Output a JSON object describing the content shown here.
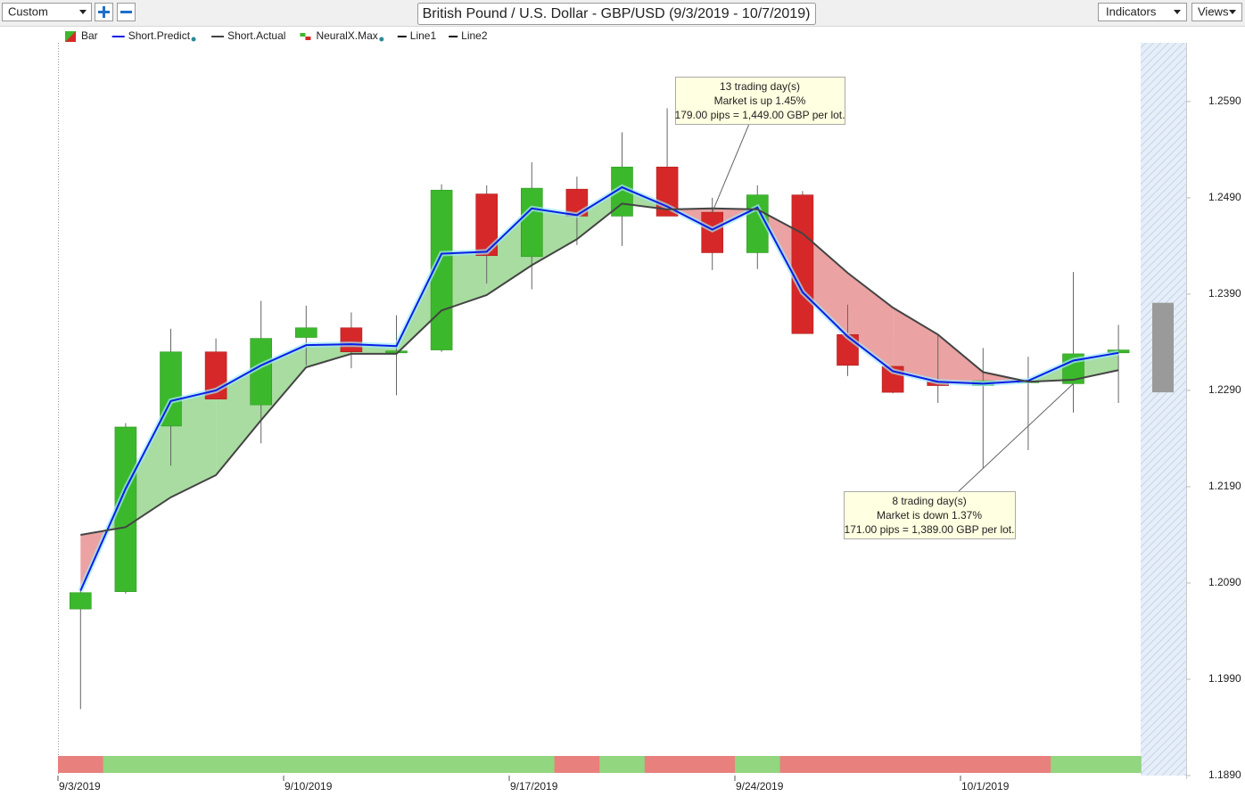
{
  "ui": {
    "preset": "Custom",
    "indicators": "Indicators",
    "views": "Views"
  },
  "chart_data": {
    "type": "candlestick",
    "title": "British Pound / U.S. Dollar - GBP/USD (9/3/2019 - 10/7/2019)",
    "categories": [
      "9/3/2019",
      null,
      null,
      null,
      null,
      "9/10/2019",
      null,
      null,
      null,
      null,
      "9/17/2019",
      null,
      null,
      null,
      null,
      "9/24/2019",
      null,
      null,
      null,
      null,
      "10/1/2019",
      null,
      null,
      null
    ],
    "open": [
      1.2063,
      1.2081,
      1.2253,
      1.233,
      1.2275,
      1.2345,
      1.2355,
      1.2329,
      1.2332,
      1.2494,
      1.2429,
      1.2499,
      1.2471,
      1.2522,
      1.2475,
      1.2433,
      1.2493,
      1.2348,
      1.2315,
      1.2299,
      1.2295,
      1.2298,
      1.2297,
      1.2329
    ],
    "high": [
      1.2082,
      1.2256,
      1.2354,
      1.2344,
      1.2383,
      1.2378,
      1.2371,
      1.2368,
      1.2504,
      1.2503,
      1.2527,
      1.2512,
      1.2558,
      1.2583,
      1.249,
      1.2503,
      1.2497,
      1.2379,
      1.2315,
      1.2348,
      1.2334,
      1.2325,
      1.2413,
      1.2358
    ],
    "low": [
      1.1959,
      1.2079,
      1.2212,
      1.2281,
      1.2235,
      1.2316,
      1.2313,
      1.2285,
      1.233,
      1.2401,
      1.2395,
      1.2441,
      1.244,
      1.2471,
      1.2415,
      1.2416,
      1.2349,
      1.2305,
      1.2287,
      1.2277,
      1.2209,
      1.2228,
      1.2267,
      1.2277
    ],
    "close": [
      1.208,
      1.2252,
      1.233,
      1.2281,
      1.2344,
      1.2355,
      1.233,
      1.2331,
      1.2498,
      1.243,
      1.25,
      1.2471,
      1.2522,
      1.2471,
      1.2433,
      1.2493,
      1.2349,
      1.2316,
      1.2288,
      1.2295,
      1.23,
      1.23,
      1.2328,
      1.2332
    ],
    "bar": {
      "name": "Bar",
      "up_color": "#3cb82c",
      "down_color": "#d62828"
    },
    "series": [
      {
        "name": "Short.Predict",
        "color": "#0a1ee6",
        "values": [
          1.2082,
          1.2188,
          1.2279,
          1.229,
          1.2316,
          1.2337,
          1.2338,
          1.2336,
          1.2432,
          1.2434,
          1.2479,
          1.2472,
          1.2501,
          1.2481,
          1.2457,
          1.248,
          1.2392,
          1.2346,
          1.231,
          1.2299,
          1.2297,
          1.23,
          1.2321,
          1.2329
        ]
      },
      {
        "name": "Short.Actual",
        "color": "#444444",
        "values": [
          1.214,
          1.2148,
          1.2179,
          1.2202,
          1.2259,
          1.2314,
          1.2328,
          1.2328,
          1.2373,
          1.2389,
          1.242,
          1.2447,
          1.2484,
          1.2478,
          1.2479,
          1.2478,
          1.2453,
          1.2412,
          1.2376,
          1.2348,
          1.2309,
          1.2299,
          1.2301,
          1.2311
        ]
      }
    ],
    "fill_colors": {
      "up": "#a8dca0",
      "down": "#eba2a2"
    },
    "signal": {
      "name": "NeuralX.Max",
      "up_color": "#92d67f",
      "down_color": "#e8807e",
      "values": [
        -1,
        1,
        1,
        1,
        1,
        1,
        1,
        1,
        1,
        1,
        1,
        -1,
        1,
        -1,
        -1,
        1,
        -1,
        -1,
        -1,
        -1,
        -1,
        -1,
        1,
        1
      ]
    },
    "lines": [
      {
        "name": "Line1",
        "color": "#111111"
      },
      {
        "name": "Line2",
        "color": "#111111"
      }
    ],
    "forecast_range": [
      1.2288,
      1.2381
    ],
    "ylim": [
      1.189,
      1.2651
    ],
    "yticks": [
      {
        "value": 1.189,
        "label": "1.1890"
      },
      {
        "value": 1.199,
        "label": "1.1990"
      },
      {
        "value": 1.209,
        "label": "1.2090"
      },
      {
        "value": 1.219,
        "label": "1.2190"
      },
      {
        "value": 1.229,
        "label": "1.2290"
      },
      {
        "value": 1.239,
        "label": "1.2390"
      },
      {
        "value": 1.249,
        "label": "1.2490"
      },
      {
        "value": 1.259,
        "label": "1.2590"
      }
    ],
    "annotations": [
      {
        "lines": [
          "13 trading day(s)",
          "Market is up 1.45%",
          "179.00 pips = 1,449.00 GBP per lot."
        ],
        "index": 14,
        "price": 1.2475
      },
      {
        "lines": [
          "8 trading day(s)",
          "Market is down 1.37%",
          "171.00 pips = 1,389.00 GBP per lot."
        ],
        "index": 22,
        "price": 1.2297
      }
    ]
  }
}
